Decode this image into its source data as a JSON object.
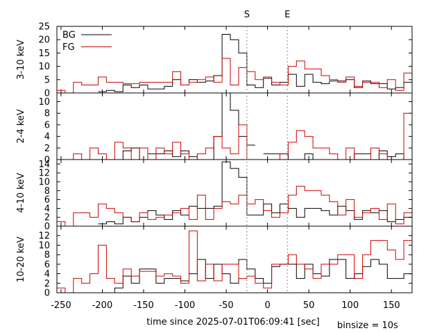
{
  "chart_data": {
    "type": "step-line",
    "xlabel": "time since 2025-07-01T06:09:41 [sec]",
    "note": "binsize = 10s",
    "xlim": [
      -255,
      175
    ],
    "xticks": [
      -250,
      -200,
      -150,
      -100,
      -50,
      0,
      50,
      100,
      150
    ],
    "markers": [
      {
        "label": "S",
        "x": -25
      },
      {
        "label": "E",
        "x": 24
      }
    ],
    "legend": {
      "placement": "top-left",
      "entries": [
        "BG",
        "FG"
      ]
    },
    "colors": {
      "BG": "#000000",
      "FG": "#cc0000"
    },
    "x_edges": [
      -255,
      -245,
      -235,
      -225,
      -215,
      -205,
      -195,
      -185,
      -175,
      -165,
      -155,
      -145,
      -135,
      -125,
      -115,
      -105,
      -95,
      -85,
      -75,
      -65,
      -55,
      -45,
      -35,
      -25,
      -15,
      -5,
      5,
      15,
      25,
      35,
      45,
      55,
      65,
      75,
      85,
      95,
      105,
      115,
      125,
      135,
      145,
      155,
      165,
      175
    ],
    "panels": [
      {
        "ylabel": "3-10 keV",
        "ylim": [
          0,
          25
        ],
        "yticks": [
          0,
          5,
          10,
          15,
          20,
          25
        ],
        "series": [
          {
            "name": "BG",
            "values": [
              null,
              null,
              null,
              null,
              null,
              0.5,
              1,
              0.5,
              3,
              2,
              3,
              1.5,
              1.5,
              2.5,
              5,
              3,
              5,
              4,
              4.5,
              6.5,
              22,
              20,
              15,
              3,
              2,
              5.5,
              3,
              4,
              7,
              2.5,
              7,
              4,
              3.5,
              4.5,
              4.5,
              5,
              2,
              4.5,
              3.5,
              3.5,
              1.5,
              2,
              4
            ]
          },
          {
            "name": "FG",
            "values": [
              1,
              0,
              4,
              3,
              3,
              6,
              4,
              4,
              3.5,
              3.5,
              4,
              4,
              4,
              4,
              8,
              3,
              4,
              5,
              6,
              4,
              13,
              3,
              9.5,
              8,
              5,
              6,
              4,
              3,
              10,
              12,
              9,
              9,
              6.5,
              5,
              4,
              6,
              2.5,
              4,
              4,
              2,
              5,
              1,
              7.5
            ]
          }
        ]
      },
      {
        "ylabel": "2-4 keV",
        "ylim": [
          0,
          11.5
        ],
        "yticks": [
          0,
          2,
          4,
          6,
          8,
          10
        ],
        "series": [
          {
            "name": "BG",
            "values": [
              null,
              null,
              null,
              null,
              null,
              null,
              null,
              0,
              1.5,
              2,
              0,
              1,
              1,
              1.5,
              0.5,
              1.5,
              0.5,
              0,
              0,
              4,
              11.5,
              8.5,
              4,
              2.5,
              null,
              1,
              1,
              1,
              0,
              0,
              1,
              0,
              0,
              0,
              0,
              0,
              1,
              1,
              0,
              1.5,
              0.5,
              1,
              0
            ]
          },
          {
            "name": "FG",
            "values": [
              0,
              0,
              1,
              0,
              2,
              1,
              0,
              3,
              2,
              0,
              2,
              0,
              2,
              1,
              3,
              1,
              0,
              1,
              2,
              4,
              2,
              1,
              6,
              0,
              0,
              0,
              0,
              1,
              3,
              5,
              4,
              2,
              2,
              1,
              0,
              2,
              0,
              0,
              2,
              1,
              0,
              0,
              8
            ]
          }
        ]
      },
      {
        "ylabel": "4-10 keV",
        "ylim": [
          0,
          15
        ],
        "yticks": [
          0,
          2,
          4,
          6,
          8,
          10,
          12,
          14
        ],
        "series": [
          {
            "name": "BG",
            "values": [
              null,
              null,
              null,
              null,
              null,
              0.5,
              1,
              0.5,
              2,
              1,
              2,
              3.5,
              2.5,
              1.5,
              3.5,
              2.5,
              4.5,
              4,
              4,
              4.5,
              14.5,
              13,
              11,
              2.5,
              2.5,
              5,
              3,
              5,
              4,
              2,
              4,
              4,
              3.5,
              2.5,
              4.5,
              3.5,
              1.5,
              3.5,
              3,
              3.5,
              1,
              1.5,
              2
            ]
          },
          {
            "name": "FG",
            "values": [
              1,
              0,
              3,
              3,
              2,
              5,
              4,
              3,
              2,
              1,
              3,
              1.5,
              2,
              2.5,
              3,
              4,
              1.5,
              7,
              1.5,
              4,
              5.5,
              5,
              7,
              5,
              6,
              3.5,
              2,
              3,
              7,
              9,
              8,
              8,
              7,
              5.5,
              2.5,
              6,
              2,
              3,
              4,
              1.5,
              5,
              0.5,
              3
            ]
          }
        ]
      },
      {
        "ylabel": "10-20 keV",
        "ylim": [
          0,
          14
        ],
        "yticks": [
          0,
          2,
          4,
          6,
          8,
          10,
          12
        ],
        "series": [
          {
            "name": "BG",
            "values": [
              null,
              null,
              null,
              null,
              null,
              null,
              0,
              1,
              3.5,
              2,
              5,
              5,
              2,
              3,
              3,
              2.5,
              4,
              7,
              3,
              6,
              4,
              2,
              7,
              5,
              3,
              2,
              5.5,
              6,
              6,
              3,
              6,
              4,
              3.5,
              7,
              7,
              3,
              4,
              5.5,
              7,
              6,
              3,
              3,
              4
            ]
          },
          {
            "name": "FG",
            "values": [
              1,
              0,
              3,
              2,
              4,
              10,
              3,
              2,
              5,
              3.5,
              4.5,
              4.5,
              3.5,
              4,
              3.5,
              2,
              13,
              2.5,
              6,
              2.5,
              6,
              6,
              3,
              3.5,
              2,
              1,
              6,
              6,
              8,
              6,
              5,
              3,
              6,
              6,
              8,
              8,
              3,
              8,
              11,
              11,
              9,
              7,
              11
            ]
          }
        ]
      }
    ]
  }
}
